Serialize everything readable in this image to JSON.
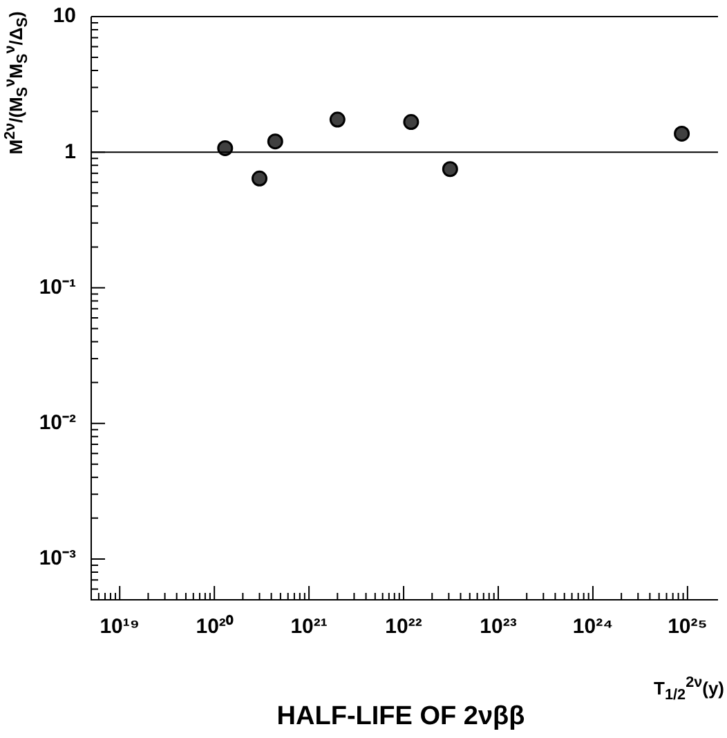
{
  "chart_data": {
    "type": "scatter",
    "xlabel": "HALF-LIFE OF 2νββ",
    "ylabel": "M$^{2ν}$/(M$_{S}$$^{ν}$M$_{S}$$^{ν}$/Δ$_{S}$)",
    "annotations": [
      "T$_{1/2}$$^{2ν}$(y)"
    ],
    "x": [
      1.3e+20,
      3e+20,
      4.4e+20,
      2e+21,
      1.2e+22,
      3.1e+22,
      8.7e+24
    ],
    "values": [
      1.07,
      0.64,
      1.2,
      1.74,
      1.67,
      0.75,
      1.37
    ],
    "color": "#404040",
    "marker": "circle",
    "log": "xy",
    "xlim": [
      5e+18,
      2.1e+25
    ],
    "ylim": [
      0.0005,
      10
    ],
    "xticks": [
      {
        "value": 5e+18,
        "label": null
      },
      {
        "value": 6e+18,
        "label": null
      },
      {
        "value": 7e+18,
        "label": null
      },
      {
        "value": 8e+18,
        "label": null
      },
      {
        "value": 9e+18,
        "label": null
      },
      {
        "value": 1e+19,
        "label": "10¹⁹"
      },
      {
        "value": 2e+19,
        "label": null
      },
      {
        "value": 3e+19,
        "label": null
      },
      {
        "value": 4e+19,
        "label": null
      },
      {
        "value": 5e+19,
        "label": null
      },
      {
        "value": 6e+19,
        "label": null
      },
      {
        "value": 7e+19,
        "label": null
      },
      {
        "value": 8e+19,
        "label": null
      },
      {
        "value": 9e+19,
        "label": null
      },
      {
        "value": 1e+20,
        "label": "10²⁰"
      },
      {
        "value": 2e+20,
        "label": null
      },
      {
        "value": 3e+20,
        "label": null
      },
      {
        "value": 4e+20,
        "label": null
      },
      {
        "value": 5e+20,
        "label": null
      },
      {
        "value": 6e+20,
        "label": null
      },
      {
        "value": 7e+20,
        "label": null
      },
      {
        "value": 8e+20,
        "label": null
      },
      {
        "value": 9e+20,
        "label": null
      },
      {
        "value": 1e+21,
        "label": "10²¹"
      },
      {
        "value": 2e+21,
        "label": null
      },
      {
        "value": 3e+21,
        "label": null
      },
      {
        "value": 4e+21,
        "label": null
      },
      {
        "value": 5e+21,
        "label": null
      },
      {
        "value": 6e+21,
        "label": null
      },
      {
        "value": 7e+21,
        "label": null
      },
      {
        "value": 8e+21,
        "label": null
      },
      {
        "value": 9e+21,
        "label": null
      },
      {
        "value": 1e+22,
        "label": "10²²"
      },
      {
        "value": 2e+22,
        "label": null
      },
      {
        "value": 3e+22,
        "label": null
      },
      {
        "value": 4e+22,
        "label": null
      },
      {
        "value": 5e+22,
        "label": null
      },
      {
        "value": 6e+22,
        "label": null
      },
      {
        "value": 7e+22,
        "label": null
      },
      {
        "value": 8e+22,
        "label": null
      },
      {
        "value": 9e+22,
        "label": null
      },
      {
        "value": 1e+23,
        "label": "10²³"
      },
      {
        "value": 2e+23,
        "label": null
      },
      {
        "value": 3e+23,
        "label": null
      },
      {
        "value": 4e+23,
        "label": null
      },
      {
        "value": 5e+23,
        "label": null
      },
      {
        "value": 6e+23,
        "label": null
      },
      {
        "value": 7e+23,
        "label": null
      },
      {
        "value": 8e+23,
        "label": null
      },
      {
        "value": 9e+23,
        "label": null
      },
      {
        "value": 1e+24,
        "label": "10²⁴"
      },
      {
        "value": 2e+24,
        "label": null
      },
      {
        "value": 3e+24,
        "label": null
      },
      {
        "value": 4e+24,
        "label": null
      },
      {
        "value": 5e+24,
        "label": null
      },
      {
        "value": 6e+24,
        "label": null
      },
      {
        "value": 7e+24,
        "label": null
      },
      {
        "value": 8e+24,
        "label": null
      },
      {
        "value": 9e+24,
        "label": null
      },
      {
        "value": 1e+25,
        "label": "10²⁵"
      }
    ],
    "yticks": [
      {
        "value": 0.0005,
        "label": null
      },
      {
        "value": 0.0006,
        "label": null
      },
      {
        "value": 0.0007,
        "label": null
      },
      {
        "value": 0.0008,
        "label": null
      },
      {
        "value": 0.0009,
        "label": null
      },
      {
        "value": 0.001,
        "label": "10⁻³"
      },
      {
        "value": 0.002,
        "label": null
      },
      {
        "value": 0.003,
        "label": null
      },
      {
        "value": 0.004,
        "label": null
      },
      {
        "value": 0.005,
        "label": null
      },
      {
        "value": 0.006,
        "label": null
      },
      {
        "value": 0.007,
        "label": null
      },
      {
        "value": 0.008,
        "label": null
      },
      {
        "value": 0.009,
        "label": null
      },
      {
        "value": 0.01,
        "label": "10⁻²"
      },
      {
        "value": 0.02,
        "label": null
      },
      {
        "value": 0.03,
        "label": null
      },
      {
        "value": 0.04,
        "label": null
      },
      {
        "value": 0.05,
        "label": null
      },
      {
        "value": 0.06,
        "label": null
      },
      {
        "value": 0.07,
        "label": null
      },
      {
        "value": 0.08,
        "label": null
      },
      {
        "value": 0.09,
        "label": null
      },
      {
        "value": 0.1,
        "label": "10⁻¹"
      },
      {
        "value": 0.2,
        "label": null
      },
      {
        "value": 0.3,
        "label": null
      },
      {
        "value": 0.4,
        "label": null
      },
      {
        "value": 0.5,
        "label": null
      },
      {
        "value": 0.6,
        "label": null
      },
      {
        "value": 0.7,
        "label": null
      },
      {
        "value": 0.8,
        "label": null
      },
      {
        "value": 0.9,
        "label": null
      },
      {
        "value": 1,
        "label": "1"
      },
      {
        "value": 2,
        "label": null
      },
      {
        "value": 3,
        "label": null
      },
      {
        "value": 4,
        "label": null
      },
      {
        "value": 5,
        "label": null
      },
      {
        "value": 6,
        "label": null
      },
      {
        "value": 7,
        "label": null
      },
      {
        "value": 8,
        "label": null
      },
      {
        "value": 9,
        "label": null
      },
      {
        "value": 10,
        "label": "10"
      }
    ],
    "ref_lines": [
      {
        "axis": "y",
        "value": 1,
        "color": "#000000"
      }
    ]
  }
}
